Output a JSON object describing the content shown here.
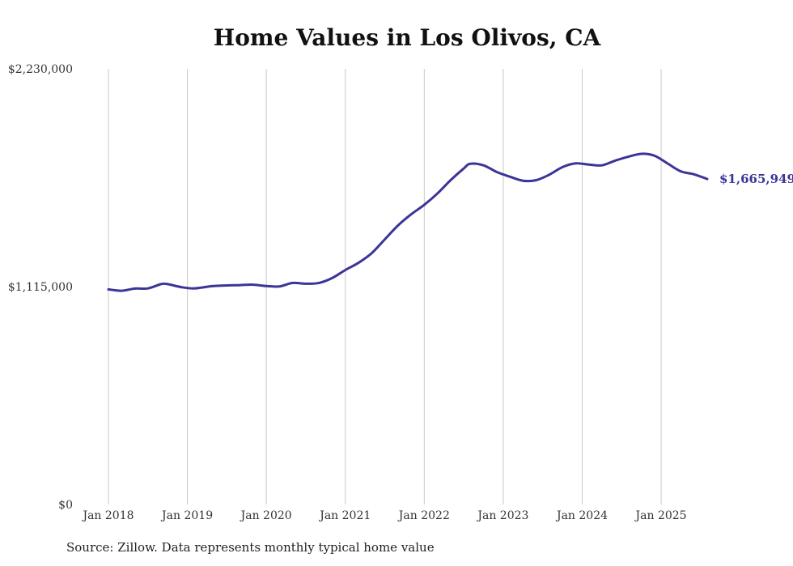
{
  "chart_data": {
    "type": "line",
    "title": "Home Values in Los Olivos, CA",
    "xlabel": "",
    "ylabel": "",
    "ylim": [
      0,
      2230000
    ],
    "y_ticks": [
      "$0",
      "$1,115,000",
      "$2,230,000"
    ],
    "x_ticks": [
      "Jan 2018",
      "Jan 2019",
      "Jan 2020",
      "Jan 2021",
      "Jan 2022",
      "Jan 2023",
      "Jan 2024",
      "Jan 2025"
    ],
    "grid": "vertical",
    "series": [
      {
        "color": "#3b3598",
        "end_label": "$1,665,949",
        "points": [
          [
            "2018-01",
            1101000
          ],
          [
            "2018-03",
            1094000
          ],
          [
            "2018-05",
            1105000
          ],
          [
            "2018-07",
            1106000
          ],
          [
            "2018-09",
            1128000
          ],
          [
            "2018-10",
            1128000
          ],
          [
            "2018-12",
            1113000
          ],
          [
            "2019-02",
            1106000
          ],
          [
            "2019-05",
            1118000
          ],
          [
            "2019-09",
            1123000
          ],
          [
            "2019-11",
            1125000
          ],
          [
            "2020-01",
            1118000
          ],
          [
            "2020-03",
            1116000
          ],
          [
            "2020-05",
            1134000
          ],
          [
            "2020-07",
            1130000
          ],
          [
            "2020-09",
            1134000
          ],
          [
            "2020-11",
            1159000
          ],
          [
            "2021-01",
            1200000
          ],
          [
            "2021-03",
            1237000
          ],
          [
            "2021-05",
            1286000
          ],
          [
            "2021-07",
            1357000
          ],
          [
            "2021-09",
            1428000
          ],
          [
            "2021-11",
            1485000
          ],
          [
            "2022-01",
            1534000
          ],
          [
            "2022-03",
            1592000
          ],
          [
            "2022-05",
            1660000
          ],
          [
            "2022-07",
            1720000
          ],
          [
            "2022-08",
            1744000
          ],
          [
            "2022-10",
            1736000
          ],
          [
            "2022-12",
            1702000
          ],
          [
            "2023-02",
            1678000
          ],
          [
            "2023-04",
            1657000
          ],
          [
            "2023-06",
            1660000
          ],
          [
            "2023-08",
            1688000
          ],
          [
            "2023-10",
            1727000
          ],
          [
            "2023-12",
            1746000
          ],
          [
            "2024-02",
            1740000
          ],
          [
            "2024-04",
            1736000
          ],
          [
            "2024-06",
            1760000
          ],
          [
            "2024-08",
            1780000
          ],
          [
            "2024-10",
            1795000
          ],
          [
            "2024-12",
            1785000
          ],
          [
            "2025-02",
            1745000
          ],
          [
            "2025-04",
            1705000
          ],
          [
            "2025-06",
            1690000
          ],
          [
            "2025-08",
            1665949
          ]
        ]
      }
    ]
  },
  "footer": {
    "source": "Source: Zillow. Data represents monthly typical home value"
  }
}
